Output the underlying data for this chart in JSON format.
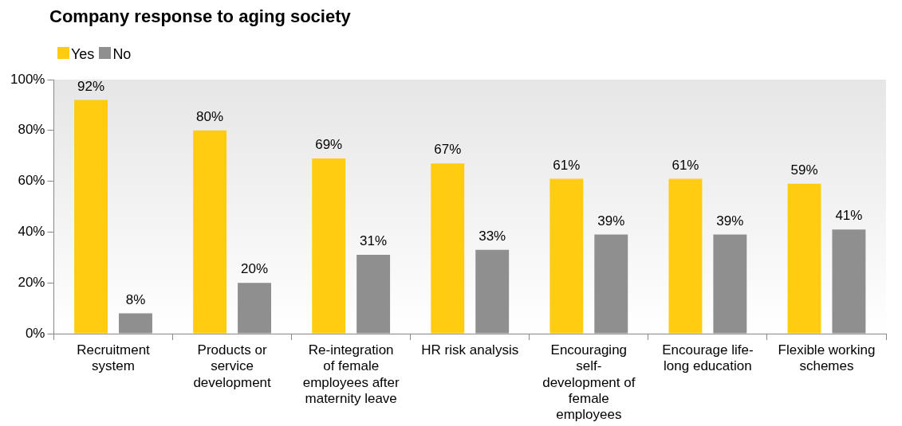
{
  "chart_data": {
    "type": "bar",
    "title": "Company response to aging society",
    "categories": [
      "Recruitment system",
      "Products or service development",
      "Re-integration of female employees after maternity leave",
      "HR risk analysis",
      "Encouraging self-development of female employees",
      "Encourage life-long education",
      "Flexible working schemes"
    ],
    "series": [
      {
        "name": "Yes",
        "color": "#ffcc11",
        "values": [
          92,
          80,
          69,
          67,
          61,
          61,
          59
        ],
        "value_labels": [
          "92%",
          "80%",
          "69%",
          "67%",
          "61%",
          "61%",
          "59%"
        ]
      },
      {
        "name": "No",
        "color": "#8f8f8f",
        "values": [
          8,
          20,
          31,
          33,
          39,
          39,
          41
        ],
        "value_labels": [
          "8%",
          "20%",
          "31%",
          "33%",
          "39%",
          "39%",
          "41%"
        ]
      }
    ],
    "ylim": [
      0,
      100
    ],
    "yticks": [
      {
        "value": 0,
        "label": "0%"
      },
      {
        "value": 20,
        "label": "20%"
      },
      {
        "value": 40,
        "label": "40%"
      },
      {
        "value": 60,
        "label": "60%"
      },
      {
        "value": 80,
        "label": "80%"
      },
      {
        "value": 100,
        "label": "100%"
      }
    ],
    "grid": false,
    "legend": "top left"
  }
}
